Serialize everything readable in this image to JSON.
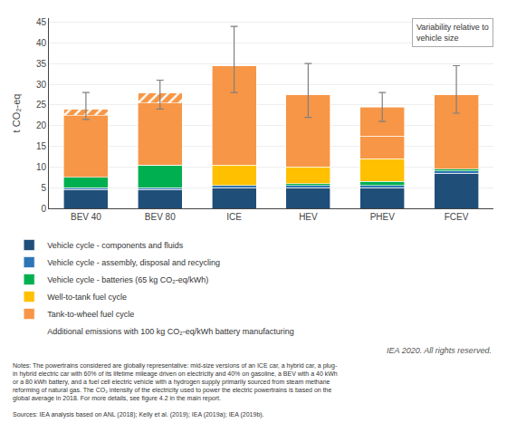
{
  "chart_data": {
    "type": "bar",
    "stacked": true,
    "categories": [
      "BEV 40",
      "BEV 80",
      "ICE",
      "HEV",
      "PHEV",
      "FCEV"
    ],
    "ylabel": "t CO₂-eq",
    "ylim": [
      0,
      46
    ],
    "yticks": [
      0,
      5,
      10,
      15,
      20,
      25,
      30,
      35,
      40,
      45
    ],
    "grid": true,
    "legend": "bottom",
    "series": [
      {
        "name": "Vehicle cycle - components and fluids",
        "color": "#1f4e79",
        "values": [
          4.5,
          4.5,
          5.0,
          5.0,
          5.0,
          8.5
        ]
      },
      {
        "name": "Vehicle cycle - assembly, disposal and recycling",
        "color": "#2e75b6",
        "values": [
          0.5,
          0.5,
          0.5,
          0.5,
          0.5,
          0.5
        ]
      },
      {
        "name": "Vehicle cycle - batteries (65 kg CO₂-eq/kWh)",
        "color": "#00b050",
        "values": [
          2.5,
          5.5,
          0.0,
          0.5,
          1.0,
          0.5
        ]
      },
      {
        "name": "Well-to-tank fuel cycle",
        "color": "#ffc000",
        "values": [
          0.0,
          0.0,
          5.0,
          4.0,
          5.5,
          0.0
        ]
      },
      {
        "name": "Tank-to-wheel fuel cycle",
        "color": "#f79646",
        "values": [
          16.5,
          17.5,
          24.0,
          17.5,
          5.5,
          18.0
        ]
      },
      {
        "name": "Tank-to-wheel fuel cycle",
        "color": "#f79646",
        "values": [
          0.0,
          0.0,
          0.0,
          0.0,
          7.0,
          0.0
        ]
      },
      {
        "name": "Additional emissions with 100 kg CO₂-eq/kWh battery manufacturing",
        "color": "#92d050",
        "marker": "hatched",
        "base": [
          22.5,
          25.5,
          null,
          null,
          null,
          null
        ],
        "values": [
          1.5,
          2.5,
          null,
          null,
          null,
          null
        ]
      }
    ],
    "error_bars": {
      "color": "#7f7f7f",
      "centers": [
        24.0,
        28.0,
        34.5,
        27.5,
        24.5,
        27.5
      ],
      "minus": [
        2.5,
        4.0,
        6.5,
        5.5,
        3.5,
        4.5
      ],
      "plus": [
        4.0,
        3.0,
        9.5,
        7.5,
        3.5,
        7.0
      ]
    },
    "annotations": [
      "Variability relative to\nvehicle size",
      "IEA 2020. All rights reserved."
    ],
    "notes": "Notes: The powertrains considered are globally representative: mid-size versions of an ICE car, a hybrid car, a plug-\nin hybrid electric car with 60% of its lifetime mileage driven on electricity and 40% on gasoline, a BEV with a 40 kWh\nor a 80 kWh battery, and a fuel cell electric vehicle with a hydrogen supply primarily sourced from steam methane\nreforming of natural gas. The CO₂ intensity of the electricity used to power the electric powertrains is based on the\nglobal average in 2018. For more details, see figure 4.2 in the main report.",
    "source": "Sources: IEA analysis based on ANL (2018); Kelly et al. (2019); IEA (2019a); IEA (2019b)."
  }
}
